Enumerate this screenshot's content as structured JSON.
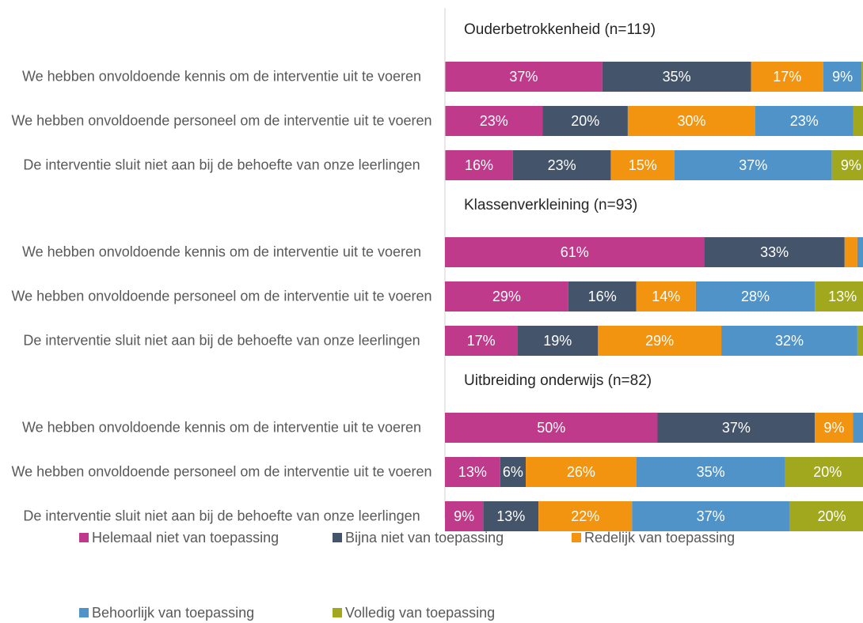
{
  "chart_data": [
    {
      "type": "bar",
      "orientation": "horizontal",
      "stacked": true,
      "title": "Ouderbetrokkenheid (n=119)",
      "categories": [
        "We hebben onvoldoende kennis om de interventie uit te voeren",
        "We hebben onvoldoende personeel om de interventie uit te voeren",
        "De interventie sluit niet aan bij de behoefte van onze leerlingen"
      ],
      "xlim": [
        0,
        100
      ],
      "xticks": [
        0,
        10,
        20,
        30,
        40,
        50,
        60,
        70,
        80,
        90,
        100
      ],
      "series": [
        {
          "name": "Helemaal niet van toepassing",
          "color": "#bf3a8b",
          "values": [
            37,
            23,
            16
          ],
          "value_labels": [
            "37%",
            "23%",
            "16%"
          ]
        },
        {
          "name": "Bijna niet van toepassing",
          "color": "#44546a",
          "values": [
            35,
            20,
            23
          ],
          "value_labels": [
            "35%",
            "20%",
            "23%"
          ]
        },
        {
          "name": "Redelijk van toepassing",
          "color": "#f39411",
          "values": [
            17,
            30,
            15
          ],
          "value_labels": [
            "17%",
            "30%",
            "15%"
          ]
        },
        {
          "name": "Behoorlijk van toepassing",
          "color": "#4f93c9",
          "values": [
            9,
            23,
            37
          ],
          "value_labels": [
            "9%",
            "23%",
            "37%"
          ]
        },
        {
          "name": "Volledig van toepassing",
          "color": "#a2a81d",
          "values": [
            2,
            4,
            9
          ],
          "value_labels": [
            null,
            null,
            "9%"
          ]
        }
      ]
    },
    {
      "type": "bar",
      "orientation": "horizontal",
      "stacked": true,
      "title": "Klassenverkleining (n=93)",
      "categories": [
        "We hebben onvoldoende kennis om de interventie uit te voeren",
        "We hebben onvoldoende personeel om de interventie uit te voeren",
        "De interventie sluit niet aan bij de behoefte van onze leerlingen"
      ],
      "xlim": [
        0,
        100
      ],
      "xticks": [
        0,
        10,
        20,
        30,
        40,
        50,
        60,
        70,
        80,
        90,
        100
      ],
      "series": [
        {
          "name": "Helemaal niet van toepassing",
          "color": "#bf3a8b",
          "values": [
            61,
            29,
            17
          ],
          "value_labels": [
            "61%",
            "29%",
            "17%"
          ]
        },
        {
          "name": "Bijna niet van toepassing",
          "color": "#44546a",
          "values": [
            33,
            16,
            19
          ],
          "value_labels": [
            "33%",
            "16%",
            "19%"
          ]
        },
        {
          "name": "Redelijk van toepassing",
          "color": "#f39411",
          "values": [
            3,
            14,
            29
          ],
          "value_labels": [
            null,
            "14%",
            "29%"
          ]
        },
        {
          "name": "Behoorlijk van toepassing",
          "color": "#4f93c9",
          "values": [
            2,
            28,
            32
          ],
          "value_labels": [
            null,
            "28%",
            "32%"
          ]
        },
        {
          "name": "Volledig van toepassing",
          "color": "#a2a81d",
          "values": [
            1,
            13,
            3
          ],
          "value_labels": [
            null,
            "13%",
            null
          ]
        }
      ]
    },
    {
      "type": "bar",
      "orientation": "horizontal",
      "stacked": true,
      "title": "Uitbreiding onderwijs (n=82)",
      "categories": [
        "We hebben onvoldoende kennis om de interventie uit te voeren",
        "We hebben onvoldoende personeel om de interventie uit te voeren",
        "De interventie sluit niet aan bij de behoefte van onze leerlingen"
      ],
      "xlim": [
        0,
        100
      ],
      "xticks": [
        0,
        10,
        20,
        30,
        40,
        50,
        60,
        70,
        80,
        90,
        100
      ],
      "series": [
        {
          "name": "Helemaal niet van toepassing",
          "color": "#bf3a8b",
          "values": [
            50,
            13,
            9
          ],
          "value_labels": [
            "50%",
            "13%",
            "9%"
          ]
        },
        {
          "name": "Bijna niet van toepassing",
          "color": "#44546a",
          "values": [
            37,
            6,
            13
          ],
          "value_labels": [
            "37%",
            "6%",
            "13%"
          ]
        },
        {
          "name": "Redelijk van toepassing",
          "color": "#f39411",
          "values": [
            9,
            26,
            22
          ],
          "value_labels": [
            "9%",
            "26%",
            "22%"
          ]
        },
        {
          "name": "Behoorlijk van toepassing",
          "color": "#4f93c9",
          "values": [
            3,
            35,
            37
          ],
          "value_labels": [
            null,
            "35%",
            "37%"
          ]
        },
        {
          "name": "Volledig van toepassing",
          "color": "#a2a81d",
          "values": [
            1,
            20,
            20
          ],
          "value_labels": [
            null,
            "20%",
            "20%"
          ]
        }
      ]
    }
  ]
}
